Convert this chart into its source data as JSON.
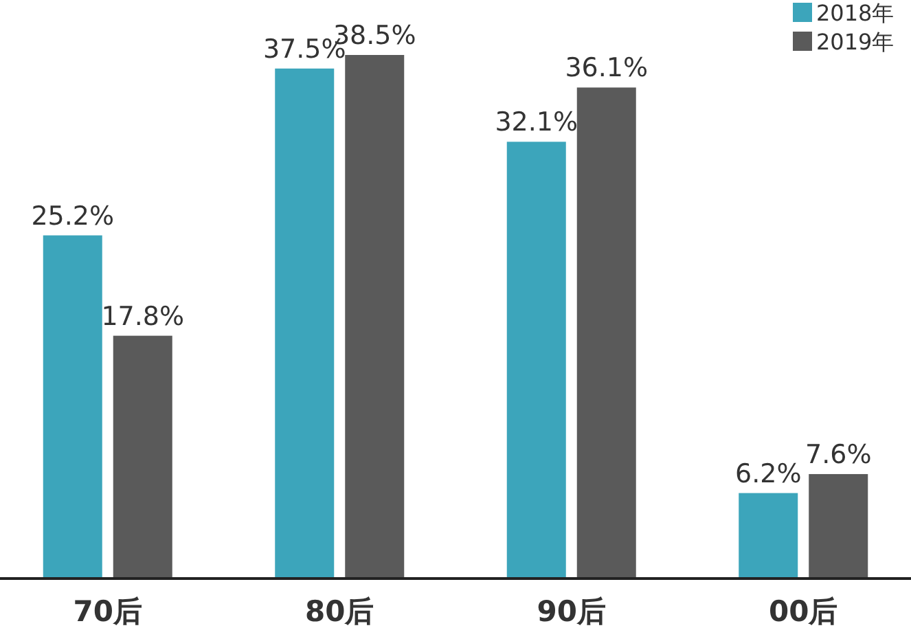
{
  "chart_data": {
    "type": "bar",
    "categories": [
      "70后",
      "80后",
      "90后",
      "00后"
    ],
    "series": [
      {
        "name": "2018年",
        "color": "#3ca5bb",
        "values": [
          25.2,
          37.5,
          32.1,
          6.2
        ],
        "value_labels": [
          "25.2%",
          "37.5%",
          "32.1%",
          "6.2%"
        ]
      },
      {
        "name": "2019年",
        "color": "#5a5a5a",
        "values": [
          17.8,
          38.5,
          36.1,
          7.6
        ],
        "value_labels": [
          "17.8%",
          "38.5%",
          "36.1%",
          "7.6%"
        ]
      }
    ],
    "legend": "top right",
    "grid": false
  }
}
